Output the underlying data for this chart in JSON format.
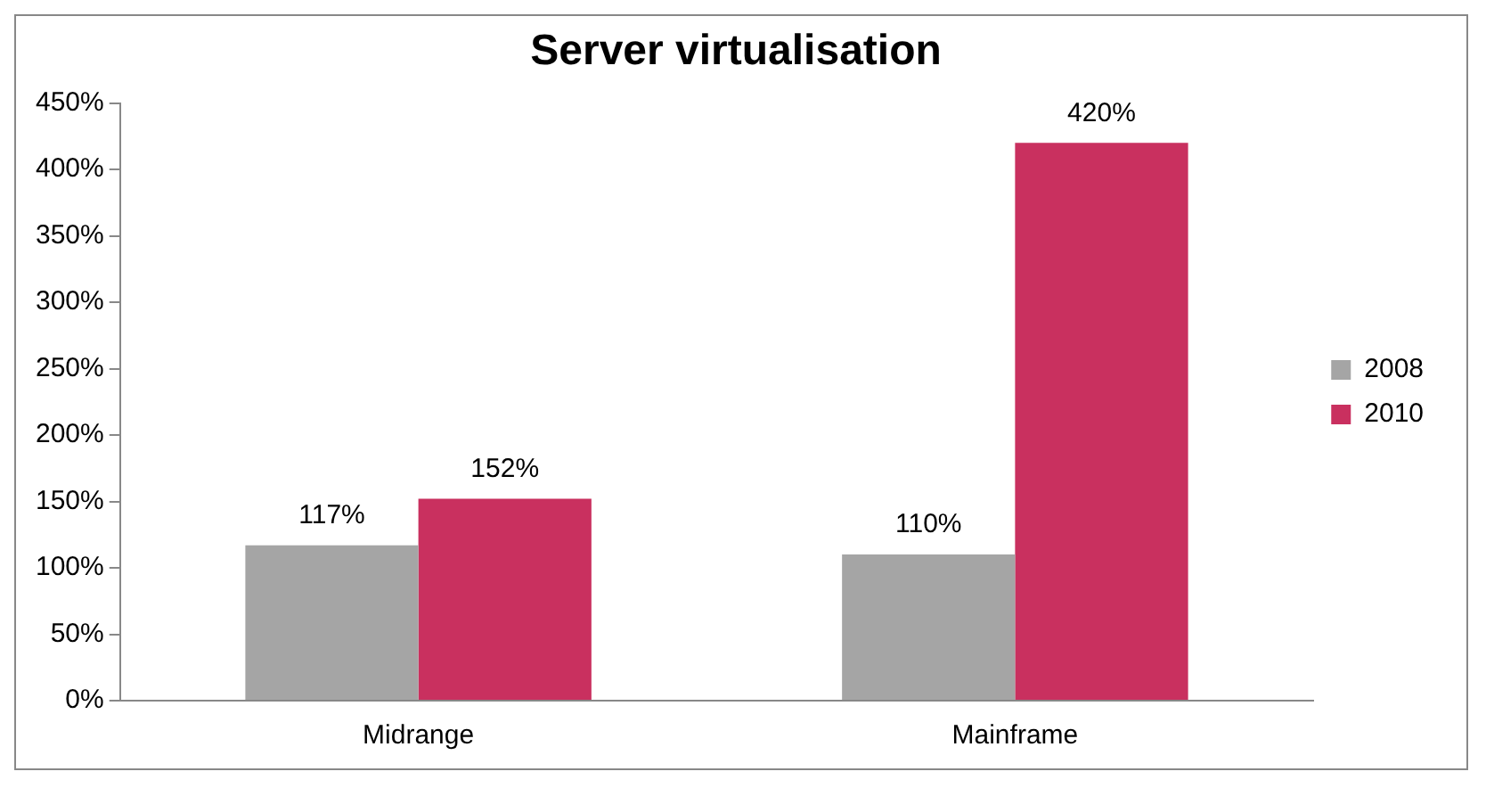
{
  "chart_data": {
    "type": "bar",
    "title": "Server virtualisation",
    "categories": [
      "Midrange",
      "Mainframe"
    ],
    "series": [
      {
        "name": "2008",
        "color": "#a5a5a5",
        "values": [
          117,
          110
        ],
        "value_labels": [
          "117%",
          "110%"
        ]
      },
      {
        "name": "2010",
        "color": "#c9305f",
        "values": [
          152,
          420
        ],
        "value_labels": [
          "152%",
          "420%"
        ]
      }
    ],
    "ylim": [
      0,
      450
    ],
    "yticks": [
      {
        "value": 0,
        "label": "0%"
      },
      {
        "value": 50,
        "label": "50%"
      },
      {
        "value": 100,
        "label": "100%"
      },
      {
        "value": 150,
        "label": "150%"
      },
      {
        "value": 200,
        "label": "200%"
      },
      {
        "value": 250,
        "label": "250%"
      },
      {
        "value": 300,
        "label": "300%"
      },
      {
        "value": 350,
        "label": "350%"
      },
      {
        "value": 400,
        "label": "400%"
      },
      {
        "value": 450,
        "label": "450%"
      }
    ],
    "grid": false,
    "legend": "right"
  }
}
